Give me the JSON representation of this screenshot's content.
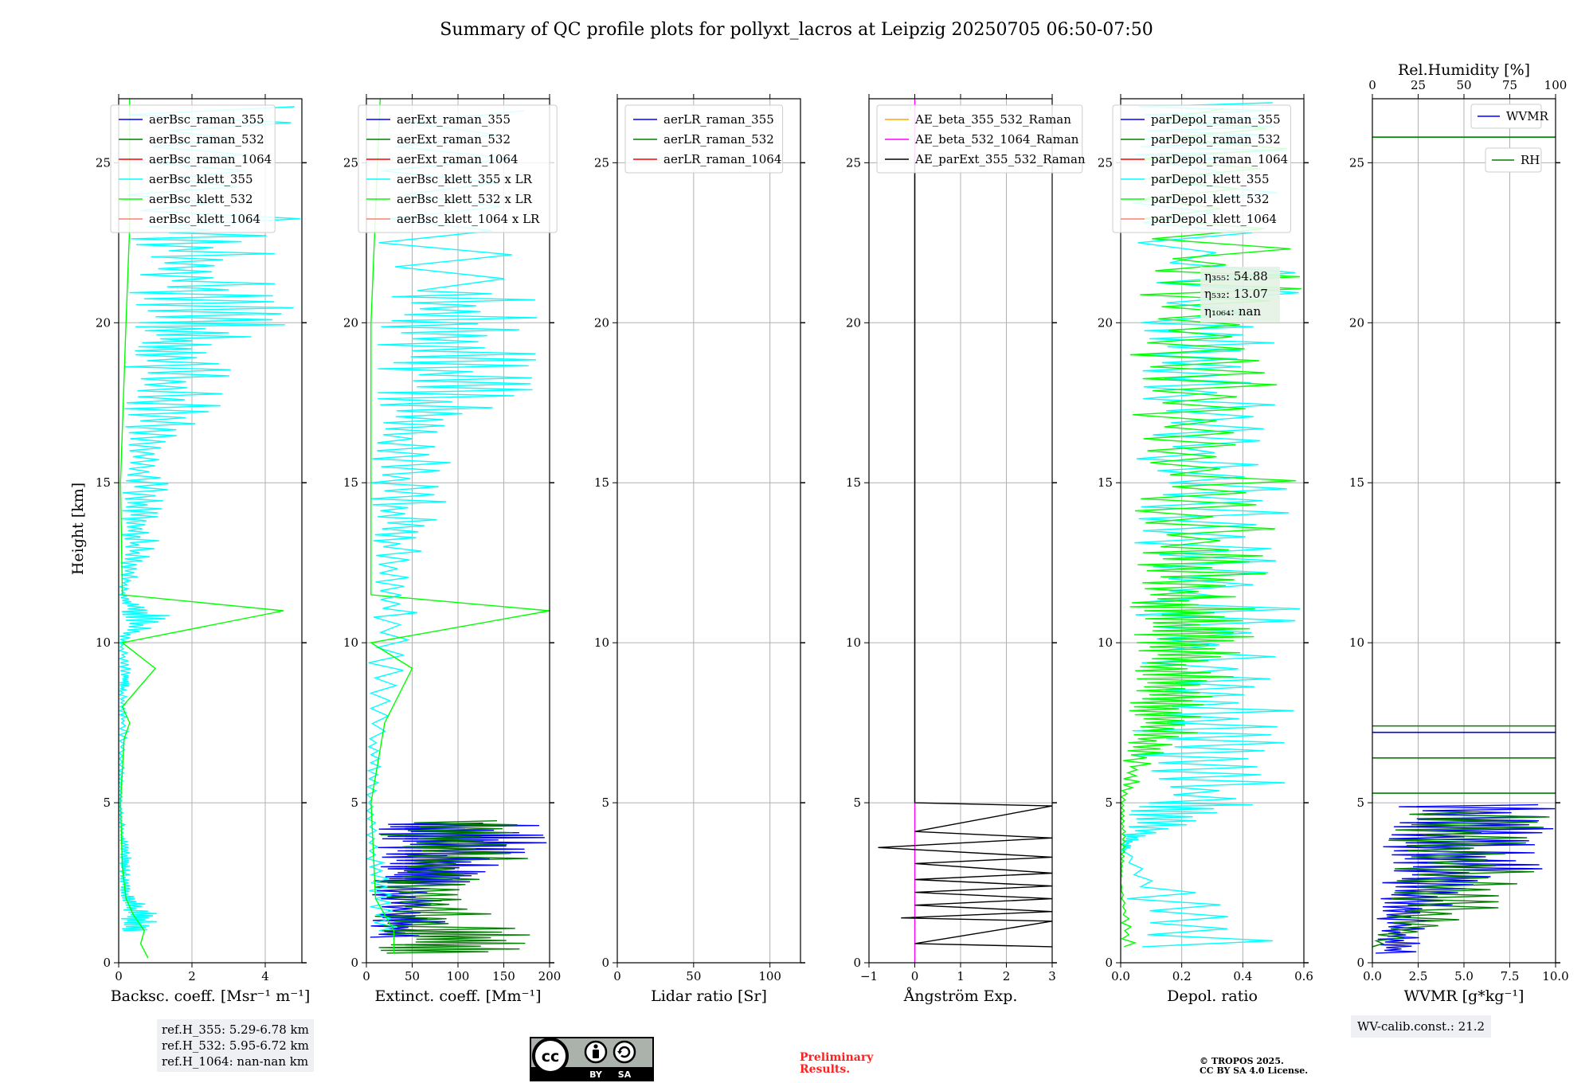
{
  "title": "Summary of QC profile plots for pollyxt_lacros at Leipzig 20250705 06:50-07:50",
  "footer": {
    "ref_lines": [
      "ref.H_355: 5.29-6.78 km",
      "ref.H_532: 5.95-6.72 km",
      "ref.H_1064: nan-nan km"
    ],
    "wv_calib": "WV-calib.const.: 21.2",
    "preliminary_lines": [
      "Preliminary",
      "Results."
    ],
    "copyright_lines": [
      "© TROPOS 2025.",
      "CC BY SA 4.0 License."
    ],
    "license_badge": {
      "cc": "cc",
      "by": "BY",
      "sa": "SA"
    }
  },
  "colors": {
    "blue": "#0000ff",
    "green": "#008000",
    "red": "#ff0000",
    "cyan": "#00ffff",
    "lime": "#00ff00",
    "salmon": "#fa8072",
    "orange": "#ffa500",
    "magenta": "#ff00ff",
    "black": "#000000"
  },
  "chart_data": [
    {
      "type": "line",
      "id": "backscatter",
      "xlabel": "Backsc. coeff. [Msr⁻¹ m⁻¹]",
      "ylabel": "Height [km]",
      "xlim": [
        0,
        5
      ],
      "ylim": [
        0,
        27
      ],
      "xticks": [
        0,
        2,
        4
      ],
      "yticks": [
        0,
        5,
        10,
        15,
        20,
        25
      ],
      "grid": true,
      "legend_position": "top",
      "series": [
        {
          "name": "aerBsc_raman_355",
          "color": "#0000ff",
          "points": []
        },
        {
          "name": "aerBsc_raman_532",
          "color": "#008000",
          "points": []
        },
        {
          "name": "aerBsc_raman_1064",
          "color": "#ff0000",
          "points": []
        },
        {
          "name": "aerBsc_klett_355",
          "color": "#00ffff",
          "style": "noisy",
          "points": [
            [
              1.2,
              1.0
            ],
            [
              1.2,
              1.5
            ],
            [
              0.4,
              2.1
            ],
            [
              0.3,
              2.8
            ],
            [
              0.4,
              3.3
            ],
            [
              0.2,
              4.0
            ],
            [
              0.1,
              5.0
            ],
            [
              0.15,
              6.0
            ],
            [
              0.3,
              7.5
            ],
            [
              0.2,
              8.5
            ],
            [
              0.5,
              9.0
            ],
            [
              0.2,
              10.0
            ],
            [
              1.6,
              10.8
            ],
            [
              0.2,
              11.5
            ],
            [
              0.9,
              12.5
            ],
            [
              1.2,
              13.5
            ],
            [
              1.4,
              14.5
            ],
            [
              1.6,
              16.0
            ],
            [
              2.9,
              17.5
            ],
            [
              3.2,
              19.0
            ],
            [
              4.8,
              20.0
            ],
            [
              4.9,
              21.5
            ],
            [
              5.0,
              23.0
            ],
            [
              5.0,
              27.0
            ]
          ]
        },
        {
          "name": "aerBsc_klett_532",
          "color": "#00ff00",
          "points": [
            [
              0.8,
              0.15
            ],
            [
              0.6,
              0.6
            ],
            [
              0.7,
              1.0
            ],
            [
              0.4,
              1.5
            ],
            [
              0.2,
              2.0
            ],
            [
              0.1,
              3.0
            ],
            [
              0.05,
              5.0
            ],
            [
              0.15,
              7.0
            ],
            [
              0.3,
              7.5
            ],
            [
              0.1,
              8.0
            ],
            [
              1.0,
              9.2
            ],
            [
              0.1,
              10.0
            ],
            [
              4.5,
              11.0
            ],
            [
              0.1,
              11.5
            ],
            [
              0.05,
              15.0
            ],
            [
              0.2,
              20.0
            ],
            [
              0.3,
              23.0
            ],
            [
              0.3,
              27.0
            ]
          ]
        },
        {
          "name": "aerBsc_klett_1064",
          "color": "#fa8072",
          "points": []
        }
      ],
      "annotation_lines": []
    },
    {
      "type": "line",
      "id": "extinction",
      "xlabel": "Extinct. coeff. [Mm⁻¹]",
      "xlim": [
        0,
        200
      ],
      "ylim": [
        0,
        27
      ],
      "xticks": [
        0,
        50,
        100,
        150,
        200
      ],
      "yticks": [
        0,
        5,
        10,
        15,
        20,
        25
      ],
      "grid": true,
      "legend_position": "top",
      "series": [
        {
          "name": "aerExt_raman_355",
          "color": "#0000ff",
          "style": "noisy",
          "points": [
            [
              80,
              0.8
            ],
            [
              90,
              1.5
            ],
            [
              120,
              2.5
            ],
            [
              150,
              3.0
            ],
            [
              200,
              3.8
            ],
            [
              200,
              4.4
            ]
          ]
        },
        {
          "name": "aerExt_raman_532",
          "color": "#008000",
          "style": "noisy",
          "points": [
            [
              200,
              0.3
            ],
            [
              180,
              1.0
            ],
            [
              120,
              2.2
            ],
            [
              200,
              3.5
            ],
            [
              200,
              4.5
            ]
          ]
        },
        {
          "name": "aerExt_raman_1064",
          "color": "#ff0000",
          "points": []
        },
        {
          "name": "aerBsc_klett_355 x LR",
          "color": "#00ffff",
          "style": "noisy",
          "points": [
            [
              60,
              1.0
            ],
            [
              20,
              3.0
            ],
            [
              10,
              5.0
            ],
            [
              20,
              7.0
            ],
            [
              60,
              10.8
            ],
            [
              70,
              13.0
            ],
            [
              90,
              14.5
            ],
            [
              100,
              16.5
            ],
            [
              190,
              18.0
            ],
            [
              200,
              19.5
            ],
            [
              200,
              21.0
            ],
            [
              200,
              27.0
            ]
          ]
        },
        {
          "name": "aerBsc_klett_532 x LR",
          "color": "#00ff00",
          "points": [
            [
              30,
              0.3
            ],
            [
              30,
              1.0
            ],
            [
              10,
              2.0
            ],
            [
              5,
              5.0
            ],
            [
              20,
              7.5
            ],
            [
              50,
              9.2
            ],
            [
              5,
              10.0
            ],
            [
              200,
              11.0
            ],
            [
              5,
              11.5
            ],
            [
              5,
              20.0
            ],
            [
              15,
              27.0
            ]
          ]
        },
        {
          "name": "aerBsc_klett_1064 x LR",
          "color": "#fa8072",
          "points": []
        }
      ],
      "annotation_lines": []
    },
    {
      "type": "line",
      "id": "lidar_ratio",
      "xlabel": "Lidar ratio [Sr]",
      "xlim": [
        0,
        120
      ],
      "ylim": [
        0,
        27
      ],
      "xticks": [
        0,
        50,
        100
      ],
      "yticks": [
        0,
        5,
        10,
        15,
        20,
        25
      ],
      "grid": true,
      "legend_position": "top",
      "series": [
        {
          "name": "aerLR_raman_355",
          "color": "#0000ff",
          "points": []
        },
        {
          "name": "aerLR_raman_532",
          "color": "#008000",
          "points": []
        },
        {
          "name": "aerLR_raman_1064",
          "color": "#ff0000",
          "points": []
        }
      ],
      "annotation_lines": []
    },
    {
      "type": "line",
      "id": "angstrom",
      "xlabel": "Ångström Exp.",
      "xlim": [
        -1,
        3
      ],
      "ylim": [
        0,
        27
      ],
      "xticks": [
        -1,
        0,
        1,
        2,
        3
      ],
      "yticks": [
        0,
        5,
        10,
        15,
        20,
        25
      ],
      "grid": true,
      "legend_position": "top",
      "series": [
        {
          "name": "AE_beta_355_532_Raman",
          "color": "#ffa500",
          "points": []
        },
        {
          "name": "AE_beta_532_1064_Raman",
          "color": "#ff00ff",
          "points": [
            [
              0,
              0
            ],
            [
              0,
              27
            ]
          ]
        },
        {
          "name": "AE_parExt_355_532_Raman",
          "color": "#000000",
          "style": "zigzag",
          "points": [
            [
              0,
              25
            ],
            [
              0,
              5.0
            ],
            [
              3,
              4.9
            ],
            [
              0,
              4.1
            ],
            [
              3,
              3.9
            ],
            [
              -0.8,
              3.6
            ],
            [
              3,
              3.3
            ],
            [
              0,
              3.1
            ],
            [
              3,
              2.8
            ],
            [
              0,
              2.6
            ],
            [
              3,
              2.4
            ],
            [
              0,
              2.2
            ],
            [
              3,
              2.0
            ],
            [
              0,
              1.8
            ],
            [
              3,
              1.6
            ],
            [
              -0.3,
              1.4
            ],
            [
              3,
              1.3
            ],
            [
              0,
              0.6
            ],
            [
              3,
              0.5
            ]
          ]
        }
      ],
      "annotation_lines": []
    },
    {
      "type": "line",
      "id": "depol",
      "xlabel": "Depol. ratio",
      "xlim": [
        0,
        0.6
      ],
      "ylim": [
        0,
        27
      ],
      "xticks": [
        0.0,
        0.2,
        0.4,
        0.6
      ],
      "yticks": [
        0,
        5,
        10,
        15,
        20,
        25
      ],
      "grid": true,
      "legend_position": "top",
      "series": [
        {
          "name": "parDepol_raman_355",
          "color": "#0000ff",
          "points": []
        },
        {
          "name": "parDepol_raman_532",
          "color": "#008000",
          "points": []
        },
        {
          "name": "parDepol_raman_1064",
          "color": "#ff0000",
          "points": []
        },
        {
          "name": "parDepol_klett_355",
          "color": "#00ffff",
          "style": "noisy",
          "points": [
            [
              0.6,
              0.5
            ],
            [
              0.02,
              3.5
            ],
            [
              0.1,
              4.0
            ],
            [
              0.6,
              5.0
            ],
            [
              0.6,
              7.0
            ],
            [
              0.6,
              9.0
            ],
            [
              0.6,
              12.0
            ],
            [
              0.6,
              15.0
            ],
            [
              0.6,
              18.0
            ],
            [
              0.6,
              20.0
            ],
            [
              0.6,
              25.0
            ],
            [
              0.6,
              27.0
            ]
          ]
        },
        {
          "name": "parDepol_klett_532",
          "color": "#00ff00",
          "style": "noisy",
          "points": [
            [
              0.06,
              0.5
            ],
            [
              0.0,
              2.5
            ],
            [
              0.02,
              3.7
            ],
            [
              0.01,
              5.0
            ],
            [
              0.15,
              6.5
            ],
            [
              0.3,
              7.5
            ],
            [
              0.35,
              8.5
            ],
            [
              0.4,
              9.5
            ],
            [
              0.5,
              10.5
            ],
            [
              0.4,
              11.5
            ],
            [
              0.6,
              13.0
            ],
            [
              0.6,
              16.0
            ],
            [
              0.6,
              19.0
            ],
            [
              0.6,
              22.0
            ],
            [
              0.6,
              27.0
            ]
          ]
        },
        {
          "name": "parDepol_klett_1064",
          "color": "#fa8072",
          "points": []
        }
      ],
      "eta_box": [
        "η₃₅₅: 54.88",
        "η₅₃₂: 13.07",
        "η₁₀₆₄: nan"
      ],
      "annotation_lines": []
    },
    {
      "type": "line",
      "id": "wvmr_rh",
      "xlabel": "WVMR [g*kg⁻¹]",
      "xlim": [
        0,
        10
      ],
      "ylim": [
        0,
        27
      ],
      "xticks": [
        0.0,
        2.5,
        5.0,
        7.5,
        10.0
      ],
      "yticks": [
        0,
        5,
        10,
        15,
        20,
        25
      ],
      "grid": true,
      "top_axis": {
        "label": "Rel.Humidity [%]",
        "lim": [
          0,
          100
        ],
        "ticks": [
          0,
          25,
          50,
          75,
          100
        ]
      },
      "legend_position": "top-right",
      "series": [
        {
          "name": "WVMR",
          "color": "#0000ff",
          "style": "noisy",
          "points": [
            [
              2.5,
              0.3
            ],
            [
              3.0,
              1.0
            ],
            [
              5.0,
              2.0
            ],
            [
              10.0,
              3.0
            ],
            [
              10.0,
              4.0
            ],
            [
              10.0,
              5.0
            ]
          ]
        },
        {
          "name": "RH",
          "color": "#008000",
          "style": "noisy",
          "axis": "top",
          "points": [
            [
              0,
              0.5
            ],
            [
              100,
              2.0
            ],
            [
              100,
              3.5
            ],
            [
              100,
              4.8
            ]
          ]
        }
      ],
      "annotation_lines": [
        {
          "color": "#008000",
          "y": 25.8
        },
        {
          "color": "#008000",
          "y": 7.4
        },
        {
          "color": "#008000",
          "y": 6.4
        },
        {
          "color": "#008000",
          "y": 5.3
        },
        {
          "color": "#0000ff",
          "y": 7.2
        }
      ]
    }
  ]
}
